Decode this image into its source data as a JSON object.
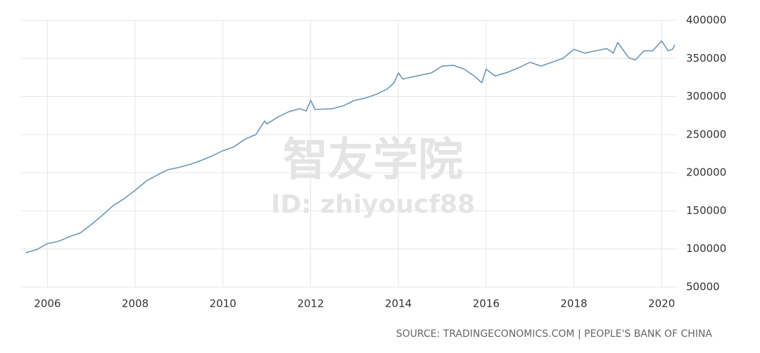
{
  "chart_data": {
    "type": "line",
    "watermark": [
      "智友学院",
      "ID: zhiyoucf88"
    ],
    "source": "SOURCE: TRADINGECONOMICS.COM | PEOPLE'S BANK OF CHINA",
    "x": [
      2005.5,
      2005.75,
      2006.0,
      2006.25,
      2006.5,
      2006.75,
      2007.0,
      2007.25,
      2007.5,
      2007.75,
      2008.0,
      2008.25,
      2008.5,
      2008.75,
      2009.0,
      2009.25,
      2009.5,
      2009.75,
      2010.0,
      2010.25,
      2010.5,
      2010.75,
      2010.95,
      2011.0,
      2011.25,
      2011.5,
      2011.75,
      2011.9,
      2012.0,
      2012.1,
      2012.5,
      2012.75,
      2013.0,
      2013.25,
      2013.5,
      2013.75,
      2013.9,
      2014.0,
      2014.1,
      2014.5,
      2014.75,
      2015.0,
      2015.25,
      2015.5,
      2015.75,
      2015.9,
      2016.0,
      2016.2,
      2016.5,
      2016.75,
      2017.0,
      2017.25,
      2017.5,
      2017.75,
      2018.0,
      2018.25,
      2018.5,
      2018.75,
      2018.9,
      2019.0,
      2019.25,
      2019.4,
      2019.6,
      2019.8,
      2020.0,
      2020.15,
      2020.25,
      2020.3
    ],
    "series": [
      {
        "color": "#6d97b8",
        "values": [
          95000,
          99000,
          107000,
          110000,
          116000,
          121000,
          132000,
          144000,
          157000,
          166000,
          177000,
          189000,
          197000,
          204000,
          207000,
          211000,
          216000,
          222000,
          229000,
          234000,
          244000,
          250000,
          268000,
          264000,
          273000,
          280000,
          284000,
          281000,
          295000,
          283000,
          284000,
          288000,
          295000,
          298000,
          303000,
          310000,
          318000,
          331000,
          323000,
          328000,
          331000,
          340000,
          341000,
          336000,
          326000,
          318000,
          336000,
          327000,
          332000,
          338000,
          345000,
          340000,
          345000,
          350000,
          362000,
          357000,
          360000,
          363000,
          357000,
          371000,
          351000,
          348000,
          360000,
          360000,
          373000,
          360000,
          362000,
          368000
        ]
      }
    ],
    "xlim": [
      2005.4,
      2020.35
    ],
    "xticks": [
      2006,
      2008,
      2010,
      2012,
      2014,
      2016,
      2018,
      2020
    ],
    "ylim": [
      50000,
      400000
    ],
    "yticks": [
      50000,
      100000,
      150000,
      200000,
      250000,
      300000,
      350000,
      400000
    ],
    "grid": true
  }
}
